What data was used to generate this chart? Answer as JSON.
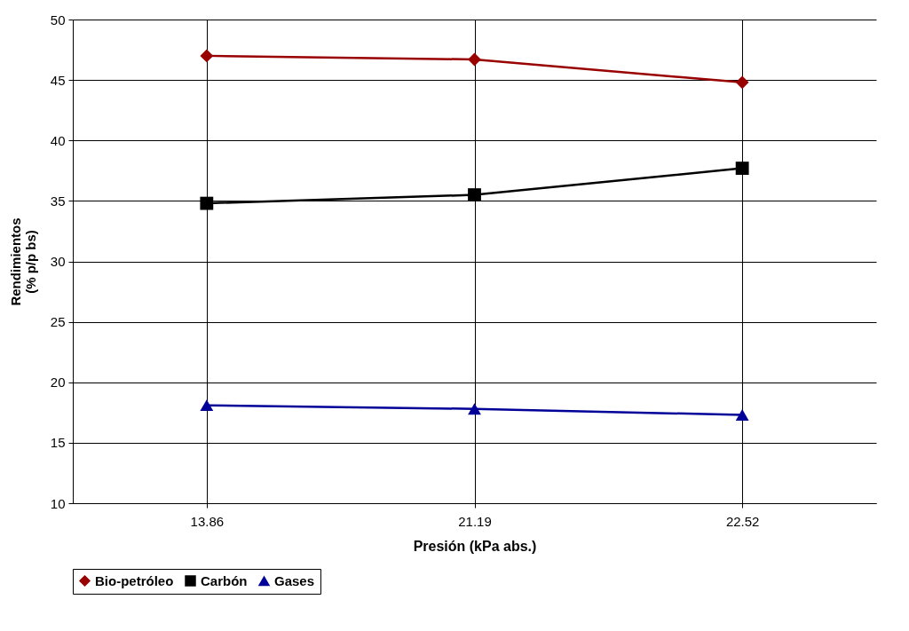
{
  "chart_data": {
    "type": "line",
    "xlabel": "Presión (kPa abs.)",
    "ylabel": "Rendimientos (% p/p bs)",
    "categories": [
      "13.86",
      "21.19",
      "22.52"
    ],
    "series": [
      {
        "name": "Bio-petróleo",
        "color": "#990000",
        "marker": "diamond",
        "values": [
          47.0,
          46.7,
          44.8
        ]
      },
      {
        "name": "Carbón",
        "color": "#000000",
        "marker": "square",
        "values": [
          34.8,
          35.5,
          37.7
        ]
      },
      {
        "name": "Gases",
        "color": "#000099",
        "marker": "triangle",
        "values": [
          18.1,
          17.8,
          17.3
        ]
      }
    ],
    "ylim": [
      10,
      50
    ],
    "yticks": [
      10,
      15,
      20,
      25,
      30,
      35,
      40,
      45,
      50
    ],
    "grid": true,
    "legend": "bottom",
    "line_style": "solid"
  }
}
